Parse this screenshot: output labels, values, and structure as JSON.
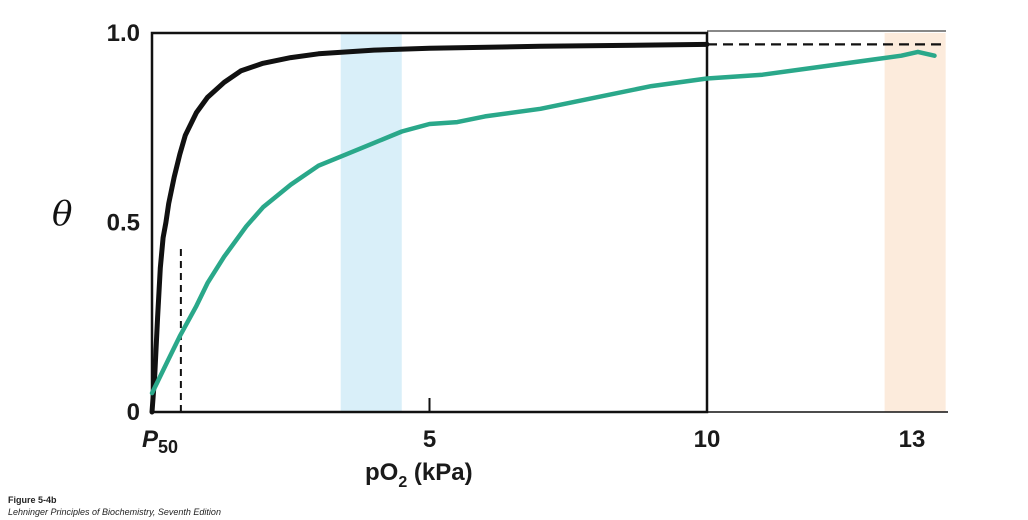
{
  "chart_data": {
    "type": "line",
    "ylabel_symbol": "θ",
    "xlabel": {
      "main": "pO",
      "sub": "2",
      "unit": " (kPa)"
    },
    "xlim": [
      -0.1,
      14.2
    ],
    "ylim": [
      0,
      1.0
    ],
    "x_ticks": [
      {
        "value": 0.25,
        "text": "P",
        "sub": "50",
        "italic": true
      },
      {
        "value": 5,
        "text": "5"
      },
      {
        "value": 10,
        "text": "10"
      },
      {
        "value": 13.3,
        "text": "13"
      }
    ],
    "y_ticks": [
      {
        "value": 0,
        "text": "0"
      },
      {
        "value": 0.5,
        "text": "0.5"
      },
      {
        "value": 1.0,
        "text": "1.0"
      }
    ],
    "bands": [
      {
        "x0": 3.4,
        "x1": 4.5,
        "color": "#d9eff9"
      },
      {
        "x0": 13.2,
        "x1": 14.3,
        "color": "#fcebdc"
      }
    ],
    "series": [
      {
        "color": "#111111",
        "x": [
          0.0,
          0.05,
          0.1,
          0.15,
          0.2,
          0.25,
          0.3,
          0.4,
          0.5,
          0.6,
          0.8,
          1.0,
          1.3,
          1.6,
          2.0,
          2.5,
          3.0,
          4.0,
          5.0,
          7.0,
          10.0
        ],
        "y": [
          0.0,
          0.1,
          0.25,
          0.38,
          0.46,
          0.5,
          0.55,
          0.62,
          0.68,
          0.73,
          0.79,
          0.83,
          0.87,
          0.9,
          0.92,
          0.935,
          0.945,
          0.955,
          0.96,
          0.965,
          0.97
        ]
      },
      {
        "color": "#2aa88a",
        "x": [
          0.0,
          0.1,
          0.3,
          0.5,
          0.8,
          1.0,
          1.3,
          1.7,
          2.0,
          2.5,
          3.0,
          3.5,
          4.0,
          4.5,
          5.0,
          5.5,
          6.0,
          7.0,
          8.0,
          9.0,
          10.0,
          11.0,
          12.0,
          13.0,
          13.5,
          13.8,
          14.1
        ],
        "y": [
          0.05,
          0.08,
          0.14,
          0.2,
          0.28,
          0.34,
          0.41,
          0.49,
          0.54,
          0.6,
          0.65,
          0.68,
          0.71,
          0.74,
          0.76,
          0.765,
          0.78,
          0.8,
          0.83,
          0.86,
          0.88,
          0.89,
          0.91,
          0.93,
          0.94,
          0.95,
          0.94
        ]
      }
    ],
    "reference_lines": [
      {
        "kind": "horizontal",
        "y": 0.97,
        "x0": 10.0,
        "x1": 14.2,
        "style": "dashed"
      },
      {
        "kind": "vertical",
        "x": 0.25,
        "y0": 0,
        "y1": 0.43,
        "style": "dashed"
      }
    ]
  },
  "caption": {
    "figure": "Figure 5-4b",
    "source": "Lehninger Principles of Biochemistry, Seventh Edition"
  }
}
